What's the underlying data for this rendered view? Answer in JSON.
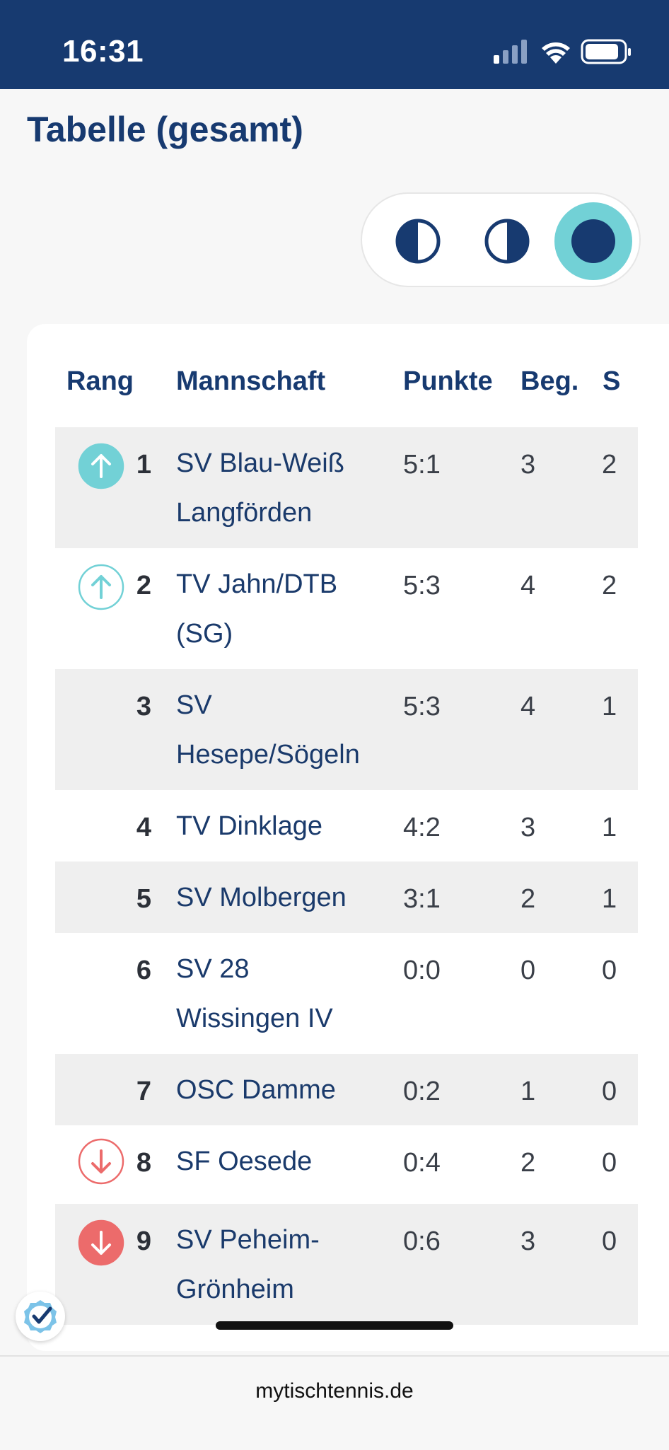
{
  "status_bar": {
    "time": "16:31",
    "icons": [
      "signal-icon",
      "wifi-icon",
      "battery-icon"
    ],
    "color": "#173a70"
  },
  "page": {
    "title": "Tabelle (gesamt)"
  },
  "view_toggle": {
    "options": [
      "left-half-icon",
      "right-half-icon",
      "full-circle-icon"
    ],
    "selected_index": 2,
    "accent_color": "#72d1d6"
  },
  "table": {
    "headers": {
      "rang": "Rang",
      "mannschaft": "Mannschaft",
      "punkte": "Punkte",
      "beg": "Beg.",
      "s": "S"
    },
    "rows": [
      {
        "trend": "up-filled",
        "rank": "1",
        "team_line1": "SV Blau-Weiß",
        "team_line2": "Langförden",
        "punkte": "5:1",
        "beg": "3",
        "s": "2"
      },
      {
        "trend": "up-outline",
        "rank": "2",
        "team_line1": "TV Jahn/DTB",
        "team_line2": "(SG)",
        "punkte": "5:3",
        "beg": "4",
        "s": "2"
      },
      {
        "trend": "none",
        "rank": "3",
        "team_line1": "SV",
        "team_line2": "Hesepe/Sögeln",
        "punkte": "5:3",
        "beg": "4",
        "s": "1"
      },
      {
        "trend": "none",
        "rank": "4",
        "team_line1": "TV Dinklage",
        "team_line2": "",
        "punkte": "4:2",
        "beg": "3",
        "s": "1"
      },
      {
        "trend": "none",
        "rank": "5",
        "team_line1": "SV Molbergen",
        "team_line2": "",
        "punkte": "3:1",
        "beg": "2",
        "s": "1"
      },
      {
        "trend": "none",
        "rank": "6",
        "team_line1": "SV 28",
        "team_line2": "Wissingen IV",
        "punkte": "0:0",
        "beg": "0",
        "s": "0"
      },
      {
        "trend": "none",
        "rank": "7",
        "team_line1": "OSC Damme",
        "team_line2": "",
        "punkte": "0:2",
        "beg": "1",
        "s": "0"
      },
      {
        "trend": "down-outline",
        "rank": "8",
        "team_line1": "SF Oesede",
        "team_line2": "",
        "punkte": "0:4",
        "beg": "2",
        "s": "0"
      },
      {
        "trend": "down-filled",
        "rank": "9",
        "team_line1": "SV Peheim-",
        "team_line2": "Grönheim",
        "punkte": "0:6",
        "beg": "3",
        "s": "0"
      }
    ],
    "colors": {
      "up": "#72d1d6",
      "down": "#ec6b6b",
      "text": "#1a3a6b"
    }
  },
  "badge": {
    "icon": "verified-check-icon"
  },
  "footer": {
    "url": "mytischtennis.de"
  }
}
